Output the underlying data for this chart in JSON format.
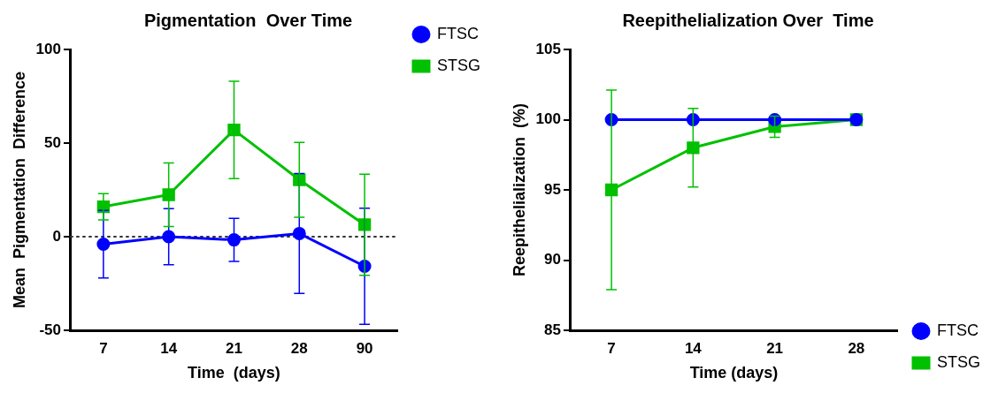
{
  "chart_data": [
    {
      "type": "line",
      "title": "Pigmentation  Over Time",
      "xlabel": "Time  (days)",
      "ylabel": "Mean  Pigmentation  Difference",
      "categories": [
        "7",
        "14",
        "21",
        "28",
        "90"
      ],
      "ylim": [
        -50,
        100
      ],
      "yticks": [
        -50,
        0,
        50,
        100
      ],
      "grid": false,
      "legend": "top right",
      "series": [
        {
          "name": "FTSC",
          "color": "#0000ff",
          "marker": "circle",
          "values": [
            -4,
            0,
            -1.7,
            1.7,
            -15.8
          ],
          "errors": [
            18,
            15,
            11.5,
            32,
            31
          ]
        },
        {
          "name": "STSG",
          "color": "#00c000",
          "marker": "square",
          "values": [
            16,
            22.4,
            57,
            30.4,
            6.4
          ],
          "errors": [
            7,
            17,
            26,
            20,
            27
          ]
        }
      ],
      "ref_lines": [
        {
          "axis": "y",
          "value": 0,
          "color": "#333333",
          "line_style": "dotted"
        }
      ]
    },
    {
      "type": "line",
      "title": "Reepithelialization Over  Time",
      "xlabel": "Time (days)",
      "ylabel": "Reepithelialization  (%)",
      "categories": [
        "7",
        "14",
        "21",
        "28"
      ],
      "ylim": [
        85,
        105
      ],
      "yticks": [
        85,
        90,
        95,
        100,
        105
      ],
      "grid": false,
      "legend": "bottom right",
      "series": [
        {
          "name": "FTSC",
          "color": "#0000ff",
          "marker": "circle",
          "values": [
            100,
            100,
            100,
            100
          ]
        },
        {
          "name": "STSG",
          "color": "#00c000",
          "marker": "square",
          "values": [
            95,
            98,
            99.5,
            100
          ],
          "errors": [
            7.1,
            2.8,
            0.75,
            null
          ]
        }
      ]
    }
  ]
}
